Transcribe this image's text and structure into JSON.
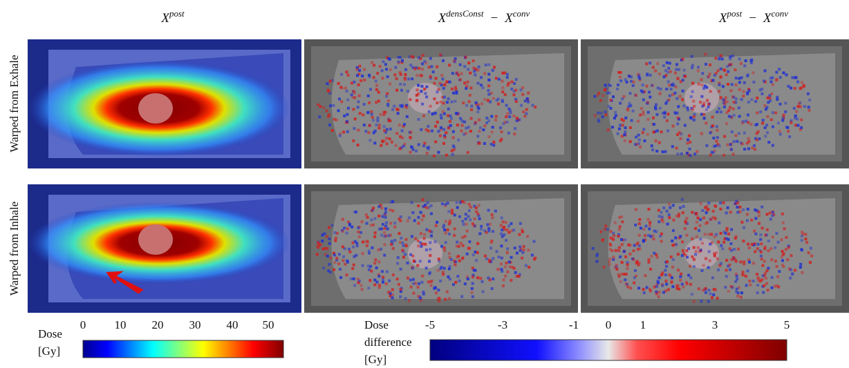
{
  "columns": [
    {
      "terms": [
        {
          "base": "X",
          "sup": "post"
        }
      ]
    },
    {
      "terms": [
        {
          "base": "X",
          "sup": "densConst"
        },
        {
          "base": "X",
          "sup": "conv"
        }
      ],
      "operator": "−"
    },
    {
      "terms": [
        {
          "base": "X",
          "sup": "post"
        },
        {
          "base": "X",
          "sup": "conv"
        }
      ],
      "operator": "−"
    }
  ],
  "rows": [
    "Warped from Exhale",
    "Warped from Inhale"
  ],
  "dose_colorbar": {
    "label": [
      "Dose",
      "[Gy]"
    ],
    "ticks": [
      0,
      10,
      20,
      30,
      40,
      50
    ]
  },
  "difference_colorbar": {
    "label": [
      "Dose",
      "difference",
      "[Gy]"
    ],
    "ticks": [
      -5,
      -3,
      -1,
      0,
      1,
      3,
      5
    ]
  }
}
